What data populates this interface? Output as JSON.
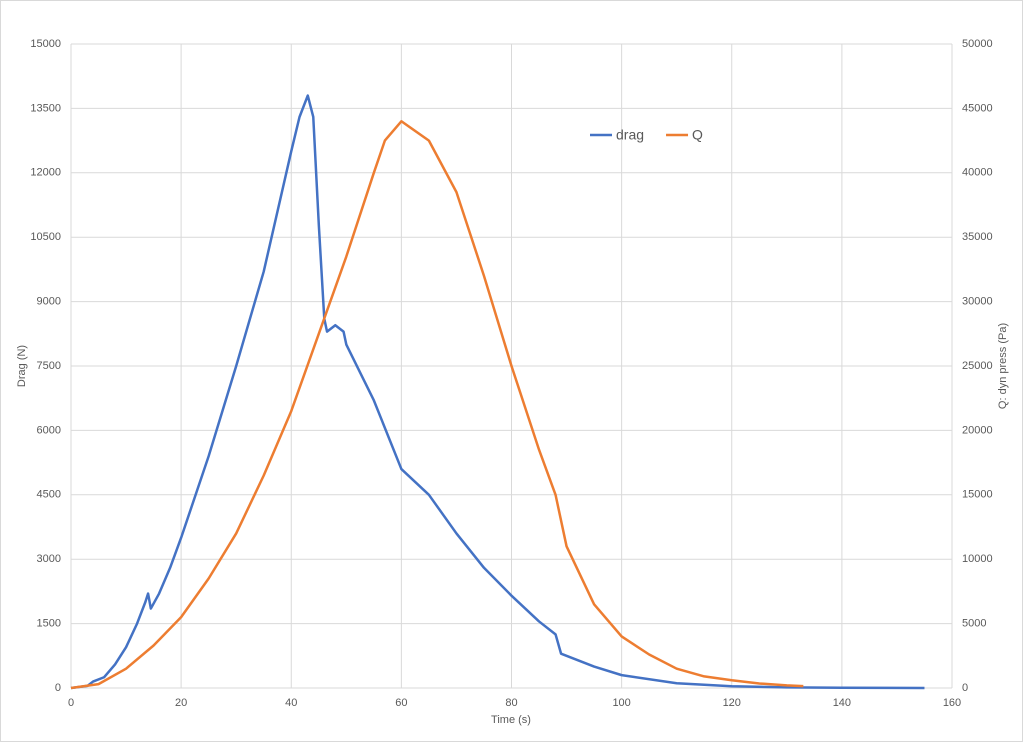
{
  "chart_data": {
    "type": "line",
    "x_label": "Time (s)",
    "y_label": "Drag (N)",
    "y2_label": "Q: dyn press (Pa)",
    "xlim": [
      0,
      160
    ],
    "xticks": [
      0,
      20,
      40,
      60,
      80,
      100,
      120,
      140,
      160
    ],
    "ylim": [
      0,
      15000
    ],
    "yticks": [
      0,
      1500,
      3000,
      4500,
      6000,
      7500,
      9000,
      10500,
      12000,
      13500,
      15000
    ],
    "y2lim": [
      0,
      50000
    ],
    "y2ticks": [
      0,
      5000,
      10000,
      15000,
      20000,
      25000,
      30000,
      35000,
      40000,
      45000,
      50000
    ],
    "grid": true,
    "legend": true,
    "series": [
      {
        "name": "drag",
        "color": "#4472c4",
        "x": [
          0,
          3,
          4,
          6,
          8,
          10,
          12,
          13.5,
          14,
          14.5,
          16,
          18,
          20,
          25,
          30,
          35,
          40,
          41.5,
          43,
          44,
          45,
          46,
          46.5,
          48,
          49.5,
          50,
          55,
          60,
          65,
          70,
          75,
          80,
          85,
          88,
          89,
          95,
          100,
          110,
          120,
          130,
          140,
          155
        ],
        "values": [
          0,
          50,
          150,
          250,
          550,
          950,
          1500,
          2000,
          2200,
          1850,
          2200,
          2800,
          3500,
          5400,
          7500,
          9700,
          12500,
          13300,
          13800,
          13300,
          10800,
          8600,
          8300,
          8450,
          8300,
          8000,
          6700,
          5100,
          4500,
          3600,
          2800,
          2150,
          1550,
          1250,
          800,
          500,
          300,
          110,
          40,
          15,
          5,
          0
        ]
      },
      {
        "name": "Q",
        "color": "#ed7d31",
        "axis": "y2",
        "x": [
          0,
          5,
          10,
          15,
          20,
          25,
          30,
          35,
          40,
          45,
          50,
          55,
          57,
          60,
          65,
          70,
          75,
          80,
          85,
          88,
          90,
          95,
          100,
          105,
          110,
          115,
          120,
          125,
          130,
          133
        ],
        "values": [
          0,
          300,
          1500,
          3300,
          5500,
          8500,
          12000,
          16500,
          21500,
          27500,
          33500,
          40000,
          42500,
          44000,
          42500,
          38500,
          32000,
          25000,
          18500,
          15000,
          11000,
          6500,
          4000,
          2600,
          1500,
          900,
          600,
          350,
          200,
          150
        ]
      }
    ]
  }
}
